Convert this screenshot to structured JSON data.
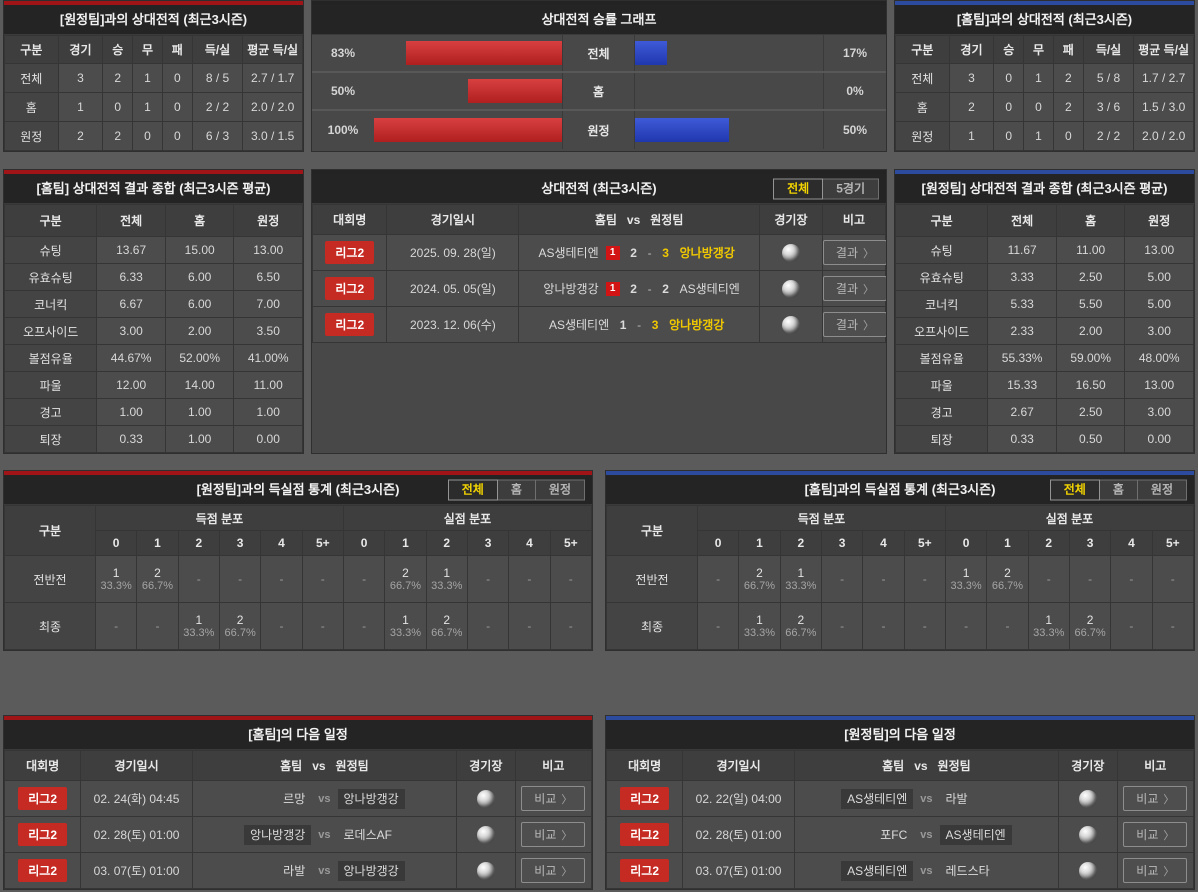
{
  "colors": {
    "page_bg": "#5b5b5b",
    "panel_bg": "#484848",
    "title_bg": "#242424",
    "accent_red": "#a01316",
    "accent_blue": "#2c4a9e",
    "bar_red": "#c62f2c",
    "bar_blue": "#2e4cc8",
    "badge_red": "#c52a23",
    "active_tab_yellow": "#f3d400",
    "winner_yellow": "#f0c800"
  },
  "ui": {
    "vs": "vs",
    "dash": "-",
    "empty": "-",
    "chevron": "〉"
  },
  "panels": {
    "h2h_away": {
      "title": "[원정팀]과의 상대전적 (최근3시즌)",
      "headers": [
        "구분",
        "경기",
        "승",
        "무",
        "패",
        "득/실",
        "평균 득/실"
      ],
      "rows": [
        [
          "전체",
          "3",
          "2",
          "1",
          "0",
          "8 / 5",
          "2.7 / 1.7"
        ],
        [
          "홈",
          "1",
          "0",
          "1",
          "0",
          "2 / 2",
          "2.0 / 2.0"
        ],
        [
          "원정",
          "2",
          "2",
          "0",
          "0",
          "6 / 3",
          "3.0 / 1.5"
        ]
      ]
    },
    "winrate": {
      "title": "상대전적 승률 그래프",
      "chart_data": {
        "type": "bar",
        "categories": [
          "전체",
          "홈",
          "원정"
        ],
        "series": [
          {
            "name": "좌측(홈팀) 승률",
            "color": "#c62f2c",
            "values": [
              83,
              50,
              100
            ]
          },
          {
            "name": "우측(원정팀) 승률",
            "color": "#2e4cc8",
            "values": [
              17,
              0,
              50
            ]
          }
        ],
        "unit": "%",
        "xlim": [
          0,
          100
        ],
        "legend": "none",
        "grid": false
      },
      "rows": [
        {
          "label": "전체",
          "left": "83%",
          "left_val": 83,
          "right": "17%",
          "right_val": 17
        },
        {
          "label": "홈",
          "left": "50%",
          "left_val": 50,
          "right": "0%",
          "right_val": 0
        },
        {
          "label": "원정",
          "left": "100%",
          "left_val": 100,
          "right": "50%",
          "right_val": 50
        }
      ]
    },
    "h2h_home": {
      "title": "[홈팀]과의 상대전적 (최근3시즌)",
      "headers": [
        "구분",
        "경기",
        "승",
        "무",
        "패",
        "득/실",
        "평균 득/실"
      ],
      "rows": [
        [
          "전체",
          "3",
          "0",
          "1",
          "2",
          "5 / 8",
          "1.7 / 2.7"
        ],
        [
          "홈",
          "2",
          "0",
          "0",
          "2",
          "3 / 6",
          "1.5 / 3.0"
        ],
        [
          "원정",
          "1",
          "0",
          "1",
          "0",
          "2 / 2",
          "2.0 / 2.0"
        ]
      ]
    },
    "summary_home": {
      "title": "[홈팀] 상대전적 결과 종합 (최근3시즌 평균)",
      "headers": [
        "구분",
        "전체",
        "홈",
        "원정"
      ],
      "rows": [
        [
          "슈팅",
          "13.67",
          "15.00",
          "13.00"
        ],
        [
          "유효슈팅",
          "6.33",
          "6.00",
          "6.50"
        ],
        [
          "코너킥",
          "6.67",
          "6.00",
          "7.00"
        ],
        [
          "오프사이드",
          "3.00",
          "2.00",
          "3.50"
        ],
        [
          "볼점유율",
          "44.67%",
          "52.00%",
          "41.00%"
        ],
        [
          "파울",
          "12.00",
          "14.00",
          "11.00"
        ],
        [
          "경고",
          "1.00",
          "1.00",
          "1.00"
        ],
        [
          "퇴장",
          "0.33",
          "1.00",
          "0.00"
        ]
      ]
    },
    "matches": {
      "title": "상대전적 (최근3시즌)",
      "tabs": [
        {
          "key": "all",
          "label": "전체",
          "active": true
        },
        {
          "key": "5games",
          "label": "5경기",
          "active": false
        }
      ],
      "headers": [
        "대회명",
        "경기일시",
        "홈팀   vs   원정팀",
        "경기장",
        "비고"
      ],
      "button_label": "결과",
      "rows": [
        {
          "league": "리그2",
          "date": "2025. 09. 28(일)",
          "home": "AS생테티엔",
          "red_badge": "1",
          "home_score": "2",
          "away_score": "3",
          "away": "앙나방갱강",
          "winner": "away"
        },
        {
          "league": "리그2",
          "date": "2024. 05. 05(일)",
          "home": "앙나방갱강",
          "red_badge": "1",
          "home_score": "2",
          "away_score": "2",
          "away": "AS생테티엔",
          "winner": "draw"
        },
        {
          "league": "리그2",
          "date": "2023. 12. 06(수)",
          "home": "AS생테티엔",
          "red_badge": "",
          "home_score": "1",
          "away_score": "3",
          "away": "앙나방갱강",
          "winner": "away"
        }
      ]
    },
    "summary_away": {
      "title": "[원정팀] 상대전적 결과 종합 (최근3시즌 평균)",
      "headers": [
        "구분",
        "전체",
        "홈",
        "원정"
      ],
      "rows": [
        [
          "슈팅",
          "11.67",
          "11.00",
          "13.00"
        ],
        [
          "유효슈팅",
          "3.33",
          "2.50",
          "5.00"
        ],
        [
          "코너킥",
          "5.33",
          "5.50",
          "5.00"
        ],
        [
          "오프사이드",
          "2.33",
          "2.00",
          "3.00"
        ],
        [
          "볼점유율",
          "55.33%",
          "59.00%",
          "48.00%"
        ],
        [
          "파울",
          "15.33",
          "16.50",
          "13.00"
        ],
        [
          "경고",
          "2.67",
          "2.50",
          "3.00"
        ],
        [
          "퇴장",
          "0.33",
          "0.50",
          "0.00"
        ]
      ]
    },
    "goals_vs_away": {
      "title": "[원정팀]과의 득실점 통계 (최근3시즌)",
      "tabs": [
        {
          "key": "all",
          "label": "전체",
          "active": true
        },
        {
          "key": "home",
          "label": "홈",
          "active": false
        },
        {
          "key": "away",
          "label": "원정",
          "active": false
        }
      ],
      "corner": "구분",
      "groups": [
        "득점 분포",
        "실점 분포"
      ],
      "bins": [
        "0",
        "1",
        "2",
        "3",
        "4",
        "5+"
      ],
      "rows": [
        {
          "label": "전반전",
          "scored": [
            {
              "n": "1",
              "p": "33.3%"
            },
            {
              "n": "2",
              "p": "66.7%"
            },
            null,
            null,
            null,
            null
          ],
          "conceded": [
            null,
            {
              "n": "2",
              "p": "66.7%"
            },
            {
              "n": "1",
              "p": "33.3%"
            },
            null,
            null,
            null
          ]
        },
        {
          "label": "최종",
          "scored": [
            null,
            null,
            {
              "n": "1",
              "p": "33.3%"
            },
            {
              "n": "2",
              "p": "66.7%"
            },
            null,
            null
          ],
          "conceded": [
            null,
            {
              "n": "1",
              "p": "33.3%"
            },
            {
              "n": "2",
              "p": "66.7%"
            },
            null,
            null,
            null
          ]
        }
      ]
    },
    "goals_vs_home": {
      "title": "[홈팀]과의 득실점 통계 (최근3시즌)",
      "tabs": [
        {
          "key": "all",
          "label": "전체",
          "active": true
        },
        {
          "key": "home",
          "label": "홈",
          "active": false
        },
        {
          "key": "away",
          "label": "원정",
          "active": false
        }
      ],
      "corner": "구분",
      "groups": [
        "득점 분포",
        "실점 분포"
      ],
      "bins": [
        "0",
        "1",
        "2",
        "3",
        "4",
        "5+"
      ],
      "rows": [
        {
          "label": "전반전",
          "scored": [
            null,
            {
              "n": "2",
              "p": "66.7%"
            },
            {
              "n": "1",
              "p": "33.3%"
            },
            null,
            null,
            null
          ],
          "conceded": [
            {
              "n": "1",
              "p": "33.3%"
            },
            {
              "n": "2",
              "p": "66.7%"
            },
            null,
            null,
            null,
            null
          ]
        },
        {
          "label": "최종",
          "scored": [
            null,
            {
              "n": "1",
              "p": "33.3%"
            },
            {
              "n": "2",
              "p": "66.7%"
            },
            null,
            null,
            null
          ],
          "conceded": [
            null,
            null,
            {
              "n": "1",
              "p": "33.3%"
            },
            {
              "n": "2",
              "p": "66.7%"
            },
            null,
            null
          ]
        }
      ]
    },
    "schedule_home": {
      "title": "[홈팀]의 다음 일정",
      "headers": [
        "대회명",
        "경기일시",
        "홈팀   vs   원정팀",
        "경기장",
        "비고"
      ],
      "button_label": "비교",
      "rows": [
        {
          "league": "리그2",
          "date": "02. 24(화) 04:45",
          "home": "르망",
          "away": "앙나방갱강",
          "highlight": "away"
        },
        {
          "league": "리그2",
          "date": "02. 28(토) 01:00",
          "home": "앙나방갱강",
          "away": "로데스AF",
          "highlight": "home"
        },
        {
          "league": "리그2",
          "date": "03. 07(토) 01:00",
          "home": "라발",
          "away": "앙나방갱강",
          "highlight": "away"
        }
      ]
    },
    "schedule_away": {
      "title": "[원정팀]의 다음 일정",
      "headers": [
        "대회명",
        "경기일시",
        "홈팀   vs   원정팀",
        "경기장",
        "비고"
      ],
      "button_label": "비교",
      "rows": [
        {
          "league": "리그2",
          "date": "02. 22(일) 04:00",
          "home": "AS생테티엔",
          "away": "라발",
          "highlight": "home"
        },
        {
          "league": "리그2",
          "date": "02. 28(토) 01:00",
          "home": "포FC",
          "away": "AS생테티엔",
          "highlight": "away"
        },
        {
          "league": "리그2",
          "date": "03. 07(토) 01:00",
          "home": "AS생테티엔",
          "away": "레드스타",
          "highlight": "home"
        }
      ]
    }
  }
}
